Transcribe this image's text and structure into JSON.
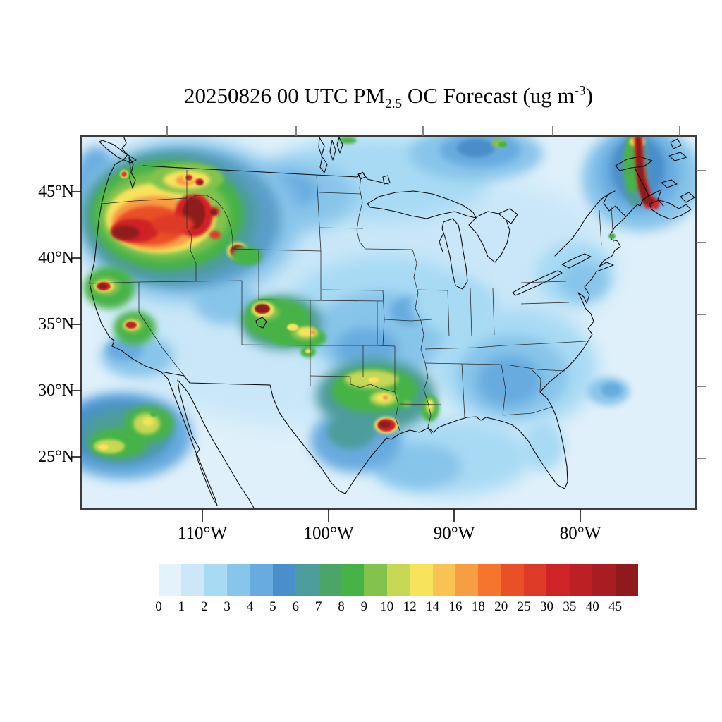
{
  "figure": {
    "title": {
      "prefix": "20250826 00 UTC PM",
      "subscript": "2.5",
      "middle": " OC Forecast (ug m",
      "superscript": "-3",
      "suffix": ")"
    },
    "background_color": "#ffffff"
  },
  "axes": {
    "lat_tick_labels": [
      "45°N",
      "40°N",
      "35°N",
      "30°N",
      "25°N"
    ],
    "lon_tick_labels": [
      "110°W",
      "100°W",
      "90°W",
      "80°W"
    ]
  },
  "colorbar": {
    "tick_labels": [
      "0",
      "1",
      "2",
      "3",
      "4",
      "5",
      "6",
      "7",
      "8",
      "9",
      "10",
      "12",
      "14",
      "16",
      "18",
      "20",
      "25",
      "30",
      "35",
      "40",
      "45"
    ],
    "segment_colors": [
      "#e3f2fb",
      "#cbe7f8",
      "#a8daf4",
      "#88c5ea",
      "#67abdf",
      "#4a8ecb",
      "#4d9c9c",
      "#4ba567",
      "#47b347",
      "#82c34d",
      "#c6d854",
      "#f8e35c",
      "#f8c352",
      "#f79d44",
      "#f5752e",
      "#ea5028",
      "#de3a28",
      "#cf2427",
      "#bc2025",
      "#a81d22",
      "#8e1a1d"
    ]
  },
  "chart_data": {
    "type": "heatmap",
    "title": "20250826 00 UTC PM2.5 OC Forecast (ug m-3)",
    "variable": "PM2.5 organic carbon concentration",
    "units": "ug m-3",
    "region": "Continental United States with southern Canada and northern Mexico",
    "levels": [
      0,
      1,
      2,
      3,
      4,
      5,
      6,
      7,
      8,
      9,
      10,
      12,
      14,
      16,
      18,
      20,
      25,
      30,
      35,
      40,
      45
    ],
    "palette": [
      "#e3f2fb",
      "#cbe7f8",
      "#a8daf4",
      "#88c5ea",
      "#67abdf",
      "#4a8ecb",
      "#4d9c9c",
      "#4ba567",
      "#47b347",
      "#82c34d",
      "#c6d854",
      "#f8e35c",
      "#f8c352",
      "#f79d44",
      "#f5752e",
      "#ea5028",
      "#de3a28",
      "#cf2427",
      "#bc2025",
      "#a81d22",
      "#8e1a1d"
    ],
    "background_level": "0-5 ug m-3 (light blue) over most of the domain and oceans",
    "hotspots": [
      {
        "region": "Eastern Oregon",
        "peak_value": ">45"
      },
      {
        "region": "Central Idaho",
        "peak_value": ">45"
      },
      {
        "region": "Washington Cascades",
        "peak_value": "10-16"
      },
      {
        "region": "Northwest Wyoming (Yellowstone area)",
        "peak_value": ">45"
      },
      {
        "region": "Northern California coast",
        "peak_value": ">45"
      },
      {
        "region": "Northern Utah (Great Salt Lake area)",
        "peak_value": ">45"
      },
      {
        "region": "Central Colorado Rockies",
        "peak_value": "12-18"
      },
      {
        "region": "Oklahoma / Red River valley",
        "peak_value": "10-14"
      },
      {
        "region": "Southeast Texas near Houston",
        "peak_value": "40-45"
      },
      {
        "region": "Central Mississippi",
        "peak_value": "10-12"
      },
      {
        "region": "Offshore Baja California plume",
        "peak_value": "10-12"
      },
      {
        "region": "Maine / New Brunswick smoke plume",
        "peak_value": ">45"
      },
      {
        "region": "Southern Quebec",
        "peak_value": "6-9"
      }
    ],
    "legend_position": "bottom",
    "grid": false
  }
}
